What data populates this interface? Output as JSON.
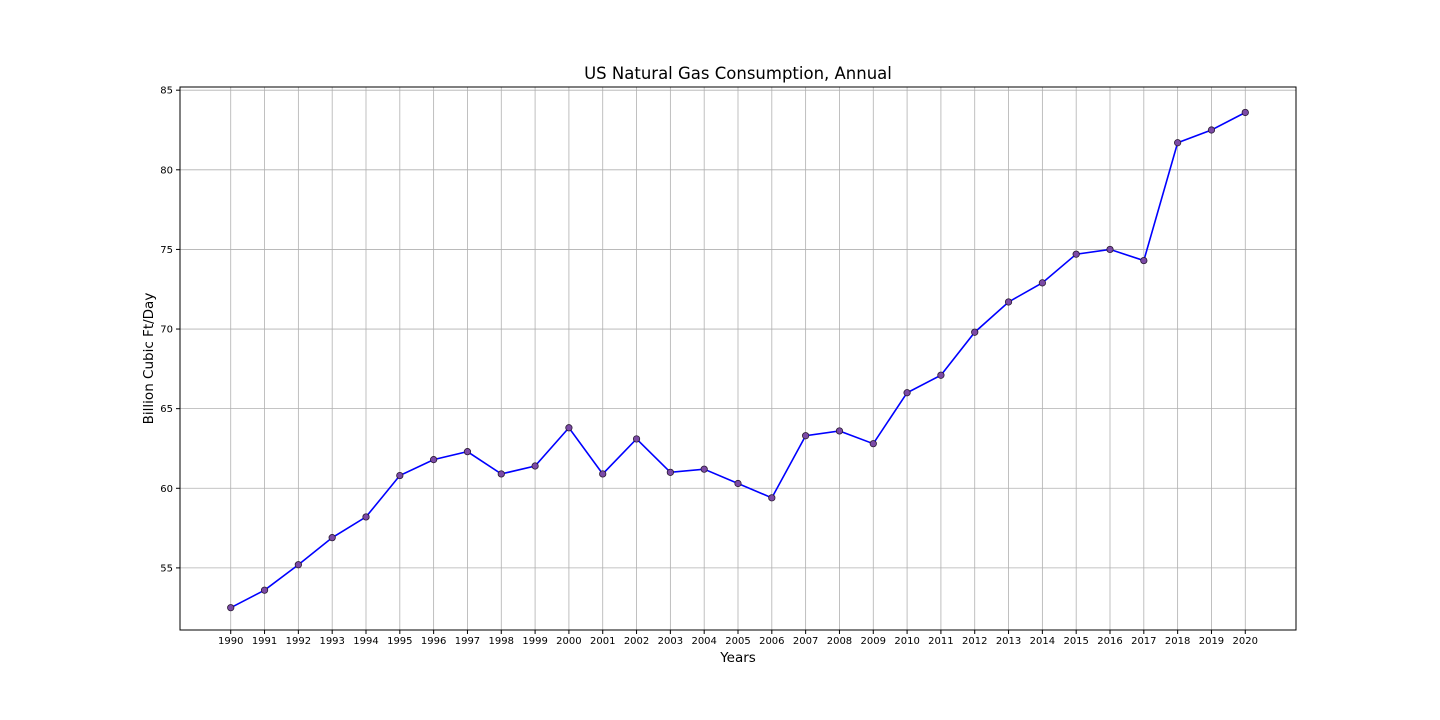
{
  "chart_data": {
    "type": "line",
    "title": "US Natural Gas Consumption, Annual",
    "xlabel": "Years",
    "ylabel": "Billion Cubic Ft/Day",
    "x": [
      1990,
      1991,
      1992,
      1993,
      1994,
      1995,
      1996,
      1997,
      1998,
      1999,
      2000,
      2001,
      2002,
      2003,
      2004,
      2005,
      2006,
      2007,
      2008,
      2009,
      2010,
      2011,
      2012,
      2013,
      2014,
      2015,
      2016,
      2017,
      2018,
      2019,
      2020
    ],
    "series": [
      {
        "values": [
          52.5,
          53.6,
          55.2,
          56.9,
          58.2,
          60.8,
          61.8,
          62.3,
          60.9,
          61.4,
          63.8,
          60.9,
          63.1,
          61.0,
          61.2,
          60.3,
          59.4,
          63.3,
          63.6,
          62.8,
          66.0,
          67.1,
          69.8,
          71.7,
          72.9,
          74.7,
          75.0,
          74.3,
          81.7,
          82.5,
          83.6
        ],
        "line_color": "#0000ff",
        "marker_fill": "#7b4aa6",
        "marker_edge": "#2a1a33"
      }
    ],
    "xticks": [
      "1990",
      "1991",
      "1992",
      "1993",
      "1994",
      "1995",
      "1996",
      "1997",
      "1998",
      "1999",
      "2000",
      "2001",
      "2002",
      "2003",
      "2004",
      "2005",
      "2006",
      "2007",
      "2008",
      "2009",
      "2010",
      "2011",
      "2012",
      "2013",
      "2014",
      "2015",
      "2016",
      "2017",
      "2018",
      "2019",
      "2020"
    ],
    "yticks": [
      55,
      60,
      65,
      70,
      75,
      80,
      85
    ],
    "xlim": [
      1988.5,
      2021.5
    ],
    "ylim": [
      51.1,
      85.2
    ],
    "grid": true,
    "legend": "none"
  }
}
